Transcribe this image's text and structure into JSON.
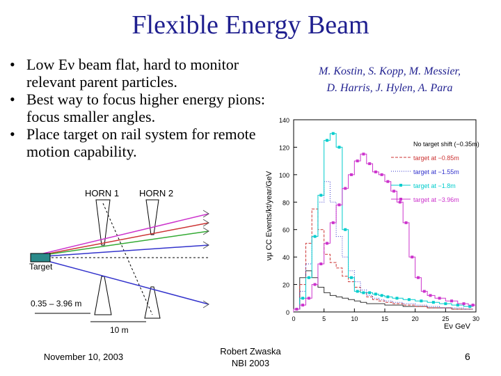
{
  "slide": {
    "title": "Flexible Energy Beam",
    "bullets": [
      "Low Eν beam flat, hard to monitor relevant parent particles.",
      "Best way to focus higher energy pions: focus smaller angles.",
      "Place target on rail system for remote motion capability."
    ],
    "authors_line1": "M. Kostin, S. Kopp, M. Messier,",
    "authors_line2": "D. Harris, J. Hylen, A. Para"
  },
  "diagram": {
    "horn1_label": "HORN 1",
    "horn2_label": "HORN 2",
    "target_label": "Target",
    "shift_label": "0.35 – 3.96 m",
    "distance_label": "10 m"
  },
  "chart_data": {
    "type": "line",
    "xlabel": "Eν GeV",
    "ylabel": "νμ CC Events/kt/year/GeV",
    "xlim": [
      0,
      30
    ],
    "ylim": [
      0,
      140
    ],
    "x_ticks": [
      "0",
      "5",
      "10",
      "15",
      "20",
      "25",
      "30"
    ],
    "y_ticks": [
      "0",
      "20",
      "40",
      "60",
      "80",
      "100",
      "120",
      "140"
    ],
    "legend_position": "top-right",
    "series": [
      {
        "name": "No target shift (−0.35m)",
        "color": "#333333",
        "style": "solid",
        "x": [
          0.5,
          1.5,
          2.5,
          3.5,
          4.5,
          5.5,
          6.5,
          7.5,
          8.5,
          9.5,
          10.5,
          11.5,
          12.5,
          13.5,
          14.5,
          15.5,
          17,
          19,
          21,
          23,
          25,
          27,
          29
        ],
        "y": [
          2,
          25,
          30,
          25,
          18,
          14,
          12,
          11,
          10,
          9,
          8,
          7,
          6,
          6,
          6,
          5,
          5,
          4,
          4,
          3,
          3,
          2,
          2
        ]
      },
      {
        "name": "target at −0.85m",
        "color": "#cc3333",
        "style": "dashed",
        "x": [
          0.5,
          1.5,
          2.5,
          3.5,
          4.5,
          5.5,
          6.5,
          7.5,
          8.5,
          9.5,
          10.5,
          11.5,
          12.5,
          13.5,
          14.5,
          15.5,
          17,
          19,
          21,
          23,
          25,
          27,
          29
        ],
        "y": [
          2,
          20,
          50,
          75,
          60,
          42,
          36,
          32,
          26,
          22,
          18,
          14,
          11,
          9,
          8,
          7,
          6,
          5,
          4,
          3,
          3,
          2,
          2
        ]
      },
      {
        "name": "target at −1.55m",
        "color": "#3333cc",
        "style": "dotted",
        "x": [
          0.5,
          1.5,
          2.5,
          3.5,
          4.5,
          5.5,
          6.5,
          7.5,
          8.5,
          9.5,
          10.5,
          11.5,
          12.5,
          13.5,
          14.5,
          15.5,
          17,
          19,
          21,
          23,
          25,
          27,
          29
        ],
        "y": [
          2,
          15,
          35,
          55,
          80,
          95,
          80,
          55,
          40,
          30,
          22,
          16,
          12,
          10,
          9,
          8,
          7,
          6,
          5,
          4,
          3,
          3,
          2
        ]
      },
      {
        "name": "target at −1.8m",
        "color": "#00cccc",
        "style": "markers",
        "x": [
          0.5,
          1.5,
          2.5,
          3.5,
          4.5,
          5.5,
          6.5,
          7.5,
          8.5,
          9.5,
          10.5,
          11.5,
          12.5,
          13.5,
          14.5,
          15.5,
          17,
          19,
          21,
          23,
          25,
          27,
          29
        ],
        "y": [
          2,
          10,
          25,
          55,
          85,
          125,
          130,
          120,
          60,
          25,
          15,
          14,
          14,
          13,
          12,
          11,
          10,
          9,
          8,
          7,
          6,
          5,
          4
        ]
      },
      {
        "name": "target at −3.96m",
        "color": "#cc33cc",
        "style": "markers",
        "x": [
          0.5,
          1.5,
          2.5,
          3.5,
          4.5,
          5.5,
          6.5,
          7.5,
          8.5,
          9.5,
          10.5,
          11.5,
          12.5,
          13.5,
          14.5,
          15.5,
          16.5,
          17.5,
          18.5,
          19.5,
          20.5,
          21.5,
          22.5,
          24,
          26,
          28,
          29.5
        ],
        "y": [
          2,
          5,
          10,
          20,
          35,
          50,
          65,
          78,
          90,
          100,
          110,
          115,
          108,
          102,
          100,
          95,
          88,
          80,
          65,
          40,
          25,
          15,
          12,
          10,
          8,
          6,
          5
        ]
      }
    ]
  },
  "footer": {
    "date": "November 10, 2003",
    "author_line1": "Robert Zwaska",
    "author_line2": "NBI 2003",
    "slide_number": "6"
  }
}
